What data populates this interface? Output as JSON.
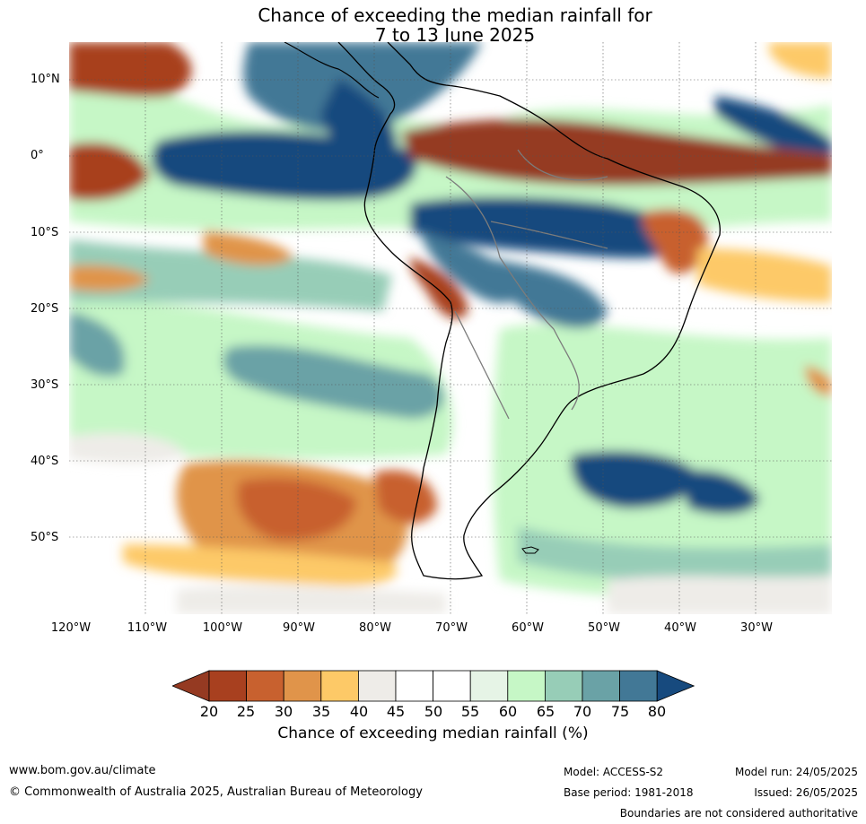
{
  "title_line1": "Chance of exceeding the median rainfall for",
  "title_line2": "7 to 13 June 2025",
  "lat_labels": [
    "10°N",
    "0°",
    "10°S",
    "20°S",
    "30°S",
    "40°S",
    "50°S"
  ],
  "lon_labels": [
    "120°W",
    "110°W",
    "100°W",
    "90°W",
    "80°W",
    "70°W",
    "60°W",
    "50°W",
    "40°W",
    "30°W"
  ],
  "colorbar": {
    "ticks": [
      "20",
      "25",
      "30",
      "35",
      "40",
      "45",
      "50",
      "55",
      "60",
      "65",
      "70",
      "75",
      "80"
    ],
    "colors": [
      "#a8401f",
      "#c8612f",
      "#e0944a",
      "#fdc967",
      "#eeece8",
      "#ffffff",
      "#ffffff",
      "#e6f4e6",
      "#c6f7c6",
      "#97cdb7",
      "#6aa2a6",
      "#427896"
    ],
    "low_color": "#953a22",
    "high_color": "#174a7e",
    "label": "Chance of exceeding median rainfall (%)"
  },
  "footer": {
    "url": "www.bom.gov.au/climate",
    "copyright": "© Commonwealth of Australia 2025, Australian Bureau of Meteorology",
    "model": "Model: ACCESS-S2",
    "base_period": "Base period: 1981-2018",
    "model_run": "Model run: 24/05/2025",
    "issued": "Issued: 26/05/2025",
    "disclaimer": "Boundaries are not considered authoritative"
  }
}
